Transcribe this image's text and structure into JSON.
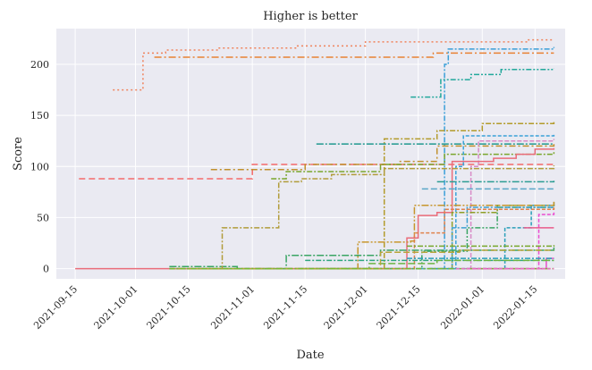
{
  "chart_data": {
    "type": "line",
    "title": "Higher is better",
    "xlabel": "Date",
    "ylabel": "Score",
    "x_type": "date",
    "xlim": [
      "2021-09-10",
      "2022-01-23"
    ],
    "ylim": [
      -10,
      235
    ],
    "grid": true,
    "background": "#eaeaf2",
    "x_ticks": [
      "2021-09-15",
      "2021-10-01",
      "2021-10-15",
      "2021-11-01",
      "2021-11-15",
      "2021-12-01",
      "2021-12-15",
      "2022-01-01",
      "2022-01-15"
    ],
    "y_ticks": [
      0,
      50,
      100,
      150,
      200
    ],
    "series": [
      {
        "color": "#f0835c",
        "dash": "2,3",
        "points": [
          [
            "2021-09-25",
            175
          ],
          [
            "2021-10-02",
            175
          ],
          [
            "2021-10-03",
            211
          ],
          [
            "2021-10-08",
            211
          ],
          [
            "2021-10-09",
            214
          ],
          [
            "2021-10-22",
            214
          ],
          [
            "2021-10-23",
            216
          ],
          [
            "2021-11-12",
            216
          ],
          [
            "2021-11-13",
            218
          ],
          [
            "2021-11-30",
            218
          ],
          [
            "2021-12-01",
            222
          ],
          [
            "2022-01-12",
            222
          ],
          [
            "2022-01-13",
            224
          ],
          [
            "2022-01-20",
            224
          ]
        ]
      },
      {
        "color": "#e88133",
        "dash": "8,3,2,3",
        "points": [
          [
            "2021-10-06",
            207
          ],
          [
            "2021-12-18",
            207
          ],
          [
            "2021-12-19",
            211
          ],
          [
            "2022-01-20",
            211
          ]
        ]
      },
      {
        "color": "#f46a6a",
        "dash": "7,4",
        "points": [
          [
            "2021-09-16",
            88
          ],
          [
            "2021-10-31",
            88
          ],
          [
            "2021-11-01",
            102
          ],
          [
            "2022-01-20",
            102
          ]
        ]
      },
      {
        "color": "#3a9fd8",
        "dash": "6,2,2,2",
        "points": [
          [
            "2021-11-20",
            0
          ],
          [
            "2021-12-20",
            0
          ],
          [
            "2021-12-22",
            200
          ],
          [
            "2021-12-23",
            215
          ],
          [
            "2022-01-20",
            217
          ]
        ]
      },
      {
        "color": "#22a89b",
        "dash": "6,2,2,2,2,2",
        "points": [
          [
            "2021-12-13",
            168
          ],
          [
            "2021-12-19",
            168
          ],
          [
            "2021-12-21",
            185
          ],
          [
            "2021-12-29",
            190
          ],
          [
            "2022-01-06",
            195
          ],
          [
            "2022-01-20",
            196
          ]
        ]
      },
      {
        "color": "#b39b2b",
        "dash": "6,2,2,2",
        "points": [
          [
            "2021-10-10",
            0
          ],
          [
            "2021-12-05",
            0
          ],
          [
            "2021-12-06",
            127
          ],
          [
            "2021-12-20",
            135
          ],
          [
            "2022-01-01",
            142
          ],
          [
            "2022-01-20",
            144
          ]
        ]
      },
      {
        "color": "#c0902d",
        "dash": "7,3,2,3",
        "points": [
          [
            "2021-10-21",
            97
          ],
          [
            "2021-11-14",
            97
          ],
          [
            "2021-11-15",
            102
          ],
          [
            "2021-12-10",
            105
          ],
          [
            "2021-12-20",
            120
          ],
          [
            "2022-01-20",
            124
          ]
        ]
      },
      {
        "color": "#7aa62d",
        "dash": "6,2,2,2",
        "points": [
          [
            "2021-11-06",
            88
          ],
          [
            "2021-11-10",
            95
          ],
          [
            "2021-12-05",
            102
          ],
          [
            "2021-12-22",
            112
          ],
          [
            "2022-01-20",
            115
          ]
        ]
      },
      {
        "color": "#229990",
        "dash": "8,2,2,2",
        "points": [
          [
            "2021-11-18",
            122
          ],
          [
            "2022-01-20",
            122
          ]
        ]
      },
      {
        "color": "#3aa2d8",
        "dash": "4,2",
        "points": [
          [
            "2021-12-23",
            0
          ],
          [
            "2021-12-25",
            100
          ],
          [
            "2021-12-27",
            130
          ],
          [
            "2022-01-20",
            131
          ]
        ]
      },
      {
        "color": "#d88bc7",
        "dash": "5,2",
        "points": [
          [
            "2021-12-27",
            0
          ],
          [
            "2021-12-29",
            100
          ],
          [
            "2021-12-31",
            125
          ],
          [
            "2022-01-20",
            127
          ]
        ]
      },
      {
        "color": "#ea6c7a",
        "dash": "",
        "points": [
          [
            "2021-09-15",
            0
          ],
          [
            "2021-12-10",
            0
          ],
          [
            "2021-12-12",
            30
          ],
          [
            "2021-12-15",
            52
          ],
          [
            "2021-12-20",
            55
          ],
          [
            "2021-12-24",
            105
          ],
          [
            "2022-01-04",
            108
          ],
          [
            "2022-01-10",
            112
          ],
          [
            "2022-01-15",
            117
          ],
          [
            "2022-01-20",
            118
          ]
        ]
      },
      {
        "color": "#3aa564",
        "dash": "6,2,2,2,2,2",
        "points": [
          [
            "2021-11-14",
            0
          ],
          [
            "2021-12-14",
            0
          ],
          [
            "2021-12-16",
            17
          ],
          [
            "2021-12-28",
            40
          ],
          [
            "2022-01-05",
            60
          ],
          [
            "2022-01-20",
            65
          ]
        ]
      },
      {
        "color": "#8e9f27",
        "dash": "6,2,2,2",
        "points": [
          [
            "2021-12-18",
            0
          ],
          [
            "2021-12-24",
            55
          ],
          [
            "2022-01-05",
            62
          ],
          [
            "2022-01-20",
            62
          ]
        ]
      },
      {
        "color": "#2a9fb8",
        "dash": "4,2",
        "points": [
          [
            "2021-12-18",
            0
          ],
          [
            "2022-01-01",
            0
          ],
          [
            "2022-01-07",
            40
          ],
          [
            "2022-01-14",
            62
          ],
          [
            "2022-01-20",
            63
          ]
        ]
      },
      {
        "color": "#5aa7c8",
        "dash": "7,3",
        "points": [
          [
            "2021-12-16",
            78
          ],
          [
            "2022-01-20",
            77
          ]
        ]
      },
      {
        "color": "#2b9c93",
        "dash": "8,2,2,2",
        "points": [
          [
            "2021-12-20",
            85
          ],
          [
            "2022-01-20",
            86
          ]
        ]
      },
      {
        "color": "#eb4cd0",
        "dash": "4,2",
        "points": [
          [
            "2021-12-28",
            0
          ],
          [
            "2022-01-14",
            0
          ],
          [
            "2022-01-16",
            53
          ],
          [
            "2022-01-20",
            55
          ]
        ]
      },
      {
        "color": "#e84fc8",
        "dash": "",
        "points": [
          [
            "2021-12-28",
            0
          ],
          [
            "2022-01-17",
            0
          ],
          [
            "2022-01-18",
            10
          ],
          [
            "2022-01-20",
            10
          ]
        ]
      },
      {
        "color": "#3ca0d0",
        "dash": "6,2,2,2",
        "points": [
          [
            "2021-10-10",
            0
          ],
          [
            "2021-12-23",
            0
          ],
          [
            "2021-12-24",
            40
          ],
          [
            "2021-12-28",
            60
          ],
          [
            "2022-01-20",
            65
          ]
        ]
      },
      {
        "color": "#c7962d",
        "dash": "8,2,2,2,2,2",
        "points": [
          [
            "2021-11-20",
            0
          ],
          [
            "2021-11-29",
            26
          ],
          [
            "2021-12-13",
            27
          ],
          [
            "2021-12-14",
            62
          ],
          [
            "2022-01-20",
            66
          ]
        ]
      },
      {
        "color": "#e0824c",
        "dash": "4,2",
        "points": [
          [
            "2021-11-01",
            0
          ],
          [
            "2021-12-12",
            0
          ],
          [
            "2021-12-14",
            35
          ],
          [
            "2021-12-22",
            58
          ],
          [
            "2022-01-20",
            60
          ]
        ]
      },
      {
        "color": "#3aa564",
        "dash": "8,2,2,2",
        "points": [
          [
            "2021-10-10",
            2
          ],
          [
            "2021-10-28",
            0
          ],
          [
            "2021-11-10",
            13
          ],
          [
            "2021-12-05",
            18
          ],
          [
            "2022-01-20",
            22
          ]
        ]
      },
      {
        "color": "#2ea77c",
        "dash": "6,2,2,2",
        "points": [
          [
            "2021-11-15",
            8
          ],
          [
            "2022-01-20",
            8
          ]
        ]
      },
      {
        "color": "#6cb542",
        "dash": "8,3",
        "points": [
          [
            "2021-10-12",
            0
          ],
          [
            "2021-11-25",
            0
          ],
          [
            "2021-12-02",
            5
          ],
          [
            "2021-12-20",
            8
          ],
          [
            "2022-01-20",
            8
          ]
        ]
      },
      {
        "color": "#2a9fb8",
        "dash": "6,2,2,2",
        "points": [
          [
            "2021-12-12",
            10
          ],
          [
            "2022-01-20",
            10
          ]
        ]
      },
      {
        "color": "#78a82e",
        "dash": "6,2,2,2",
        "points": [
          [
            "2021-12-12",
            22
          ],
          [
            "2021-12-15",
            22
          ],
          [
            "2022-01-20",
            23
          ]
        ]
      },
      {
        "color": "#b8a43a",
        "dash": "7,3",
        "points": [
          [
            "2021-10-10",
            0
          ],
          [
            "2021-12-04",
            0
          ],
          [
            "2021-12-05",
            16
          ],
          [
            "2021-12-26",
            18
          ],
          [
            "2022-01-20",
            18
          ]
        ]
      },
      {
        "color": "#b19c3a",
        "dash": "6,2,2,2",
        "points": [
          [
            "2021-10-12",
            0
          ],
          [
            "2021-10-23",
            0
          ],
          [
            "2021-10-24",
            40
          ],
          [
            "2021-11-06",
            40
          ],
          [
            "2021-11-08",
            85
          ],
          [
            "2021-11-14",
            88
          ],
          [
            "2021-11-22",
            92
          ],
          [
            "2021-12-06",
            98
          ],
          [
            "2022-01-20",
            101
          ]
        ]
      },
      {
        "color": "#7ab82f",
        "dash": "6,2,2,2",
        "points": [
          [
            "2021-10-10",
            0
          ],
          [
            "2022-01-20",
            0
          ]
        ]
      },
      {
        "color": "#e86fc0",
        "dash": "4,2",
        "points": [
          [
            "2021-12-25",
            0
          ],
          [
            "2022-01-20",
            0
          ]
        ]
      },
      {
        "color": "#e95b8a",
        "dash": "",
        "points": [
          [
            "2022-01-12",
            40
          ],
          [
            "2022-01-20",
            40
          ]
        ]
      }
    ]
  }
}
